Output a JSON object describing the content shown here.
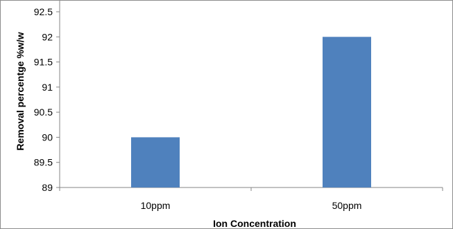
{
  "chart_data": {
    "type": "bar",
    "categories": [
      "10ppm",
      "50ppm"
    ],
    "values": [
      90,
      92
    ],
    "title": "",
    "xlabel": "Ion  Concentration",
    "ylabel": "Removal percentge %w/w",
    "ylim": [
      89,
      92.5
    ],
    "yticks": [
      "89",
      "89.5",
      "90",
      "90.5",
      "91",
      "91.5",
      "92",
      "92.5"
    ],
    "grid": false,
    "legend": "none",
    "bar_color": "#4f81bd"
  }
}
